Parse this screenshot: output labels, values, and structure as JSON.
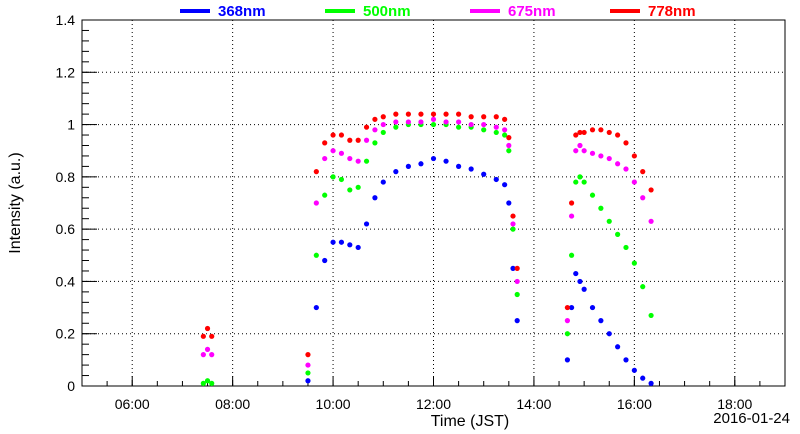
{
  "chart_data": {
    "type": "scatter",
    "xlabel": "Time (JST)",
    "ylabel": "Intensity (a.u.)",
    "date_label": "2016-01-24",
    "xlim": [
      "05:00",
      "19:00"
    ],
    "ylim": [
      0,
      1.4
    ],
    "x_ticks": [
      "06:00",
      "08:00",
      "10:00",
      "12:00",
      "14:00",
      "16:00",
      "18:00"
    ],
    "y_ticks": [
      "0",
      "0.2",
      "0.4",
      "0.6",
      "0.8",
      "1",
      "1.2",
      "1.4"
    ],
    "grid": true,
    "legend_position": "top",
    "series": [
      {
        "name": "368nm",
        "color": "#0000ff",
        "x": [
          "09:30",
          "09:40",
          "09:50",
          "10:00",
          "10:10",
          "10:20",
          "10:30",
          "10:40",
          "10:50",
          "11:00",
          "11:15",
          "11:30",
          "11:45",
          "12:00",
          "12:15",
          "12:30",
          "12:45",
          "13:00",
          "13:15",
          "13:25",
          "13:30",
          "13:35",
          "13:40",
          "14:40",
          "14:45",
          "14:50",
          "14:55",
          "15:00",
          "15:10",
          "15:20",
          "15:30",
          "15:40",
          "15:50",
          "16:00",
          "16:10",
          "16:20"
        ],
        "values": [
          0.02,
          0.3,
          0.48,
          0.55,
          0.55,
          0.54,
          0.53,
          0.62,
          0.72,
          0.78,
          0.82,
          0.84,
          0.85,
          0.87,
          0.86,
          0.84,
          0.83,
          0.81,
          0.79,
          0.77,
          0.7,
          0.45,
          0.25,
          0.1,
          0.3,
          0.43,
          0.4,
          0.37,
          0.3,
          0.25,
          0.2,
          0.15,
          0.1,
          0.06,
          0.03,
          0.01
        ]
      },
      {
        "name": "500nm",
        "color": "#00ff00",
        "x": [
          "07:25",
          "07:30",
          "07:35",
          "09:30",
          "09:40",
          "09:50",
          "10:00",
          "10:10",
          "10:20",
          "10:30",
          "10:40",
          "10:50",
          "11:00",
          "11:15",
          "11:30",
          "11:45",
          "12:00",
          "12:15",
          "12:30",
          "12:45",
          "13:00",
          "13:15",
          "13:25",
          "13:30",
          "13:35",
          "13:40",
          "14:40",
          "14:45",
          "14:50",
          "14:55",
          "15:00",
          "15:10",
          "15:20",
          "15:30",
          "15:40",
          "15:50",
          "16:00",
          "16:10",
          "16:20"
        ],
        "values": [
          0.01,
          0.02,
          0.01,
          0.05,
          0.5,
          0.73,
          0.8,
          0.79,
          0.75,
          0.76,
          0.86,
          0.93,
          0.97,
          0.99,
          1.0,
          1.0,
          1.0,
          1.0,
          0.99,
          0.99,
          0.98,
          0.97,
          0.96,
          0.9,
          0.6,
          0.35,
          0.2,
          0.5,
          0.78,
          0.8,
          0.78,
          0.73,
          0.68,
          0.63,
          0.58,
          0.53,
          0.47,
          0.38,
          0.27
        ]
      },
      {
        "name": "675nm",
        "color": "#ff00ff",
        "x": [
          "07:25",
          "07:30",
          "07:35",
          "09:30",
          "09:40",
          "09:50",
          "10:00",
          "10:10",
          "10:20",
          "10:30",
          "10:40",
          "10:50",
          "11:00",
          "11:15",
          "11:30",
          "11:45",
          "12:00",
          "12:15",
          "12:30",
          "12:45",
          "13:00",
          "13:15",
          "13:25",
          "13:30",
          "13:35",
          "13:40",
          "14:40",
          "14:45",
          "14:50",
          "14:55",
          "15:00",
          "15:10",
          "15:20",
          "15:30",
          "15:40",
          "15:50",
          "16:00",
          "16:10",
          "16:20"
        ],
        "values": [
          0.12,
          0.14,
          0.12,
          0.08,
          0.7,
          0.87,
          0.9,
          0.89,
          0.87,
          0.86,
          0.94,
          0.98,
          1.0,
          1.01,
          1.01,
          1.01,
          1.02,
          1.01,
          1.01,
          1.0,
          1.0,
          0.99,
          0.98,
          0.92,
          0.62,
          0.4,
          0.25,
          0.65,
          0.9,
          0.92,
          0.9,
          0.89,
          0.88,
          0.87,
          0.85,
          0.83,
          0.78,
          0.72,
          0.63
        ]
      },
      {
        "name": "778nm",
        "color": "#ff0000",
        "x": [
          "07:25",
          "07:30",
          "07:35",
          "09:30",
          "09:40",
          "09:50",
          "10:00",
          "10:10",
          "10:20",
          "10:30",
          "10:40",
          "10:50",
          "11:00",
          "11:15",
          "11:30",
          "11:45",
          "12:00",
          "12:15",
          "12:30",
          "12:45",
          "13:00",
          "13:15",
          "13:25",
          "13:30",
          "13:35",
          "13:40",
          "14:40",
          "14:45",
          "14:50",
          "14:55",
          "15:00",
          "15:10",
          "15:20",
          "15:30",
          "15:40",
          "15:50",
          "16:00",
          "16:10",
          "16:20"
        ],
        "values": [
          0.19,
          0.22,
          0.19,
          0.12,
          0.82,
          0.93,
          0.96,
          0.96,
          0.94,
          0.94,
          0.99,
          1.02,
          1.03,
          1.04,
          1.04,
          1.04,
          1.04,
          1.04,
          1.04,
          1.03,
          1.03,
          1.03,
          1.02,
          0.95,
          0.65,
          0.45,
          0.3,
          0.7,
          0.96,
          0.97,
          0.97,
          0.98,
          0.98,
          0.97,
          0.96,
          0.93,
          0.88,
          0.82,
          0.75
        ]
      }
    ]
  }
}
